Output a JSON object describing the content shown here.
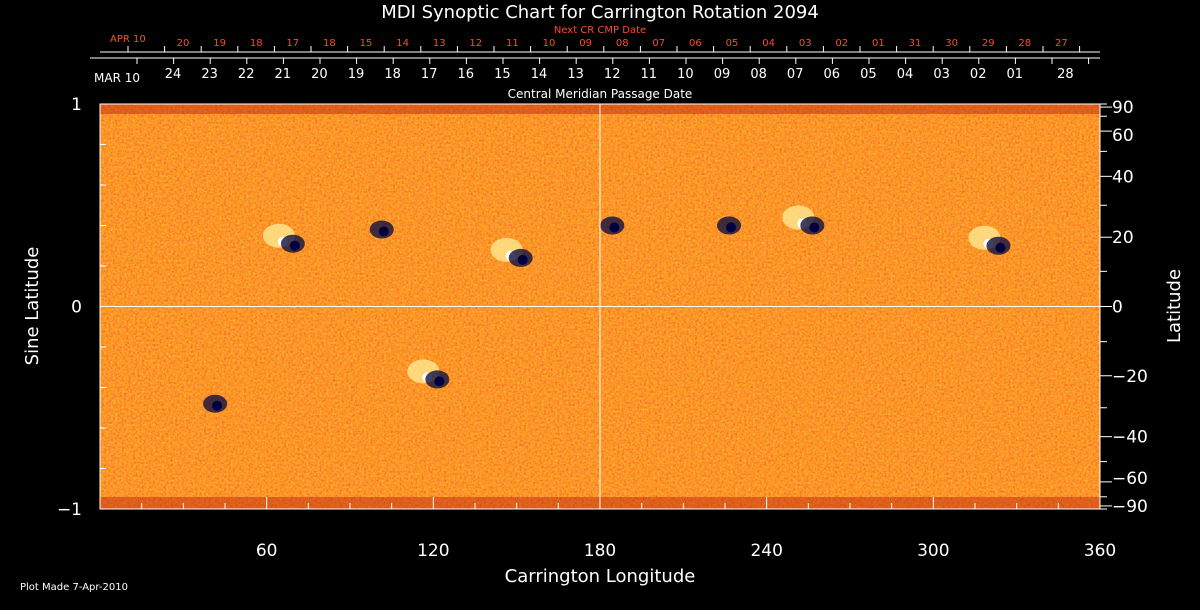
{
  "chart_data": {
    "type": "heatmap",
    "title": "MDI Synoptic Chart for Carrington Rotation 2094",
    "xlabel": "Carrington Longitude",
    "ylabel_left": "Sine Latitude",
    "ylabel_right": "Latitude",
    "xlim": [
      0,
      360
    ],
    "ylim": [
      -1,
      1
    ],
    "x_ticks": [
      60,
      120,
      180,
      240,
      300,
      360
    ],
    "y_ticks_left": [
      1,
      0,
      -1
    ],
    "y_ticks_right": [
      90,
      60,
      40,
      20,
      0,
      -20,
      -40,
      -60,
      -90
    ],
    "top_axis": {
      "label": "Central Meridian Passage Date",
      "start_label": "MAR 10",
      "labels": [
        "24",
        "23",
        "22",
        "21",
        "20",
        "19",
        "18",
        "17",
        "16",
        "15",
        "14",
        "13",
        "12",
        "11",
        "10",
        "09",
        "08",
        "07",
        "06",
        "05",
        "04",
        "03",
        "02",
        "01",
        "28"
      ]
    },
    "top_axis_next": {
      "label": "Next CR CMP Date",
      "start_label": "APR 10",
      "labels": [
        "20",
        "19",
        "18",
        "17",
        "18",
        "15",
        "14",
        "13",
        "12",
        "11",
        "10",
        "09",
        "08",
        "07",
        "06",
        "05",
        "04",
        "03",
        "02",
        "01",
        "31",
        "30",
        "29",
        "28",
        "27"
      ]
    },
    "grid_lines": {
      "longitude": 180,
      "latitude": 0
    },
    "colormap": [
      "#000070",
      "#a01808",
      "#ff5a00",
      "#ff9a20",
      "#ffffc8"
    ],
    "active_regions": [
      {
        "lon": 68,
        "sinlat": 0.31,
        "polarity": "bipolar"
      },
      {
        "lon": 100,
        "sinlat": 0.38,
        "polarity": "negative"
      },
      {
        "lon": 150,
        "sinlat": 0.24,
        "polarity": "bipolar"
      },
      {
        "lon": 183,
        "sinlat": 0.4,
        "polarity": "negative"
      },
      {
        "lon": 225,
        "sinlat": 0.4,
        "polarity": "negative"
      },
      {
        "lon": 255,
        "sinlat": 0.4,
        "polarity": "bipolar"
      },
      {
        "lon": 322,
        "sinlat": 0.3,
        "polarity": "bipolar"
      },
      {
        "lon": 120,
        "sinlat": -0.36,
        "polarity": "bipolar"
      },
      {
        "lon": 40,
        "sinlat": -0.48,
        "polarity": "negative"
      }
    ]
  },
  "footer": "Plot Made  7-Apr-2010"
}
